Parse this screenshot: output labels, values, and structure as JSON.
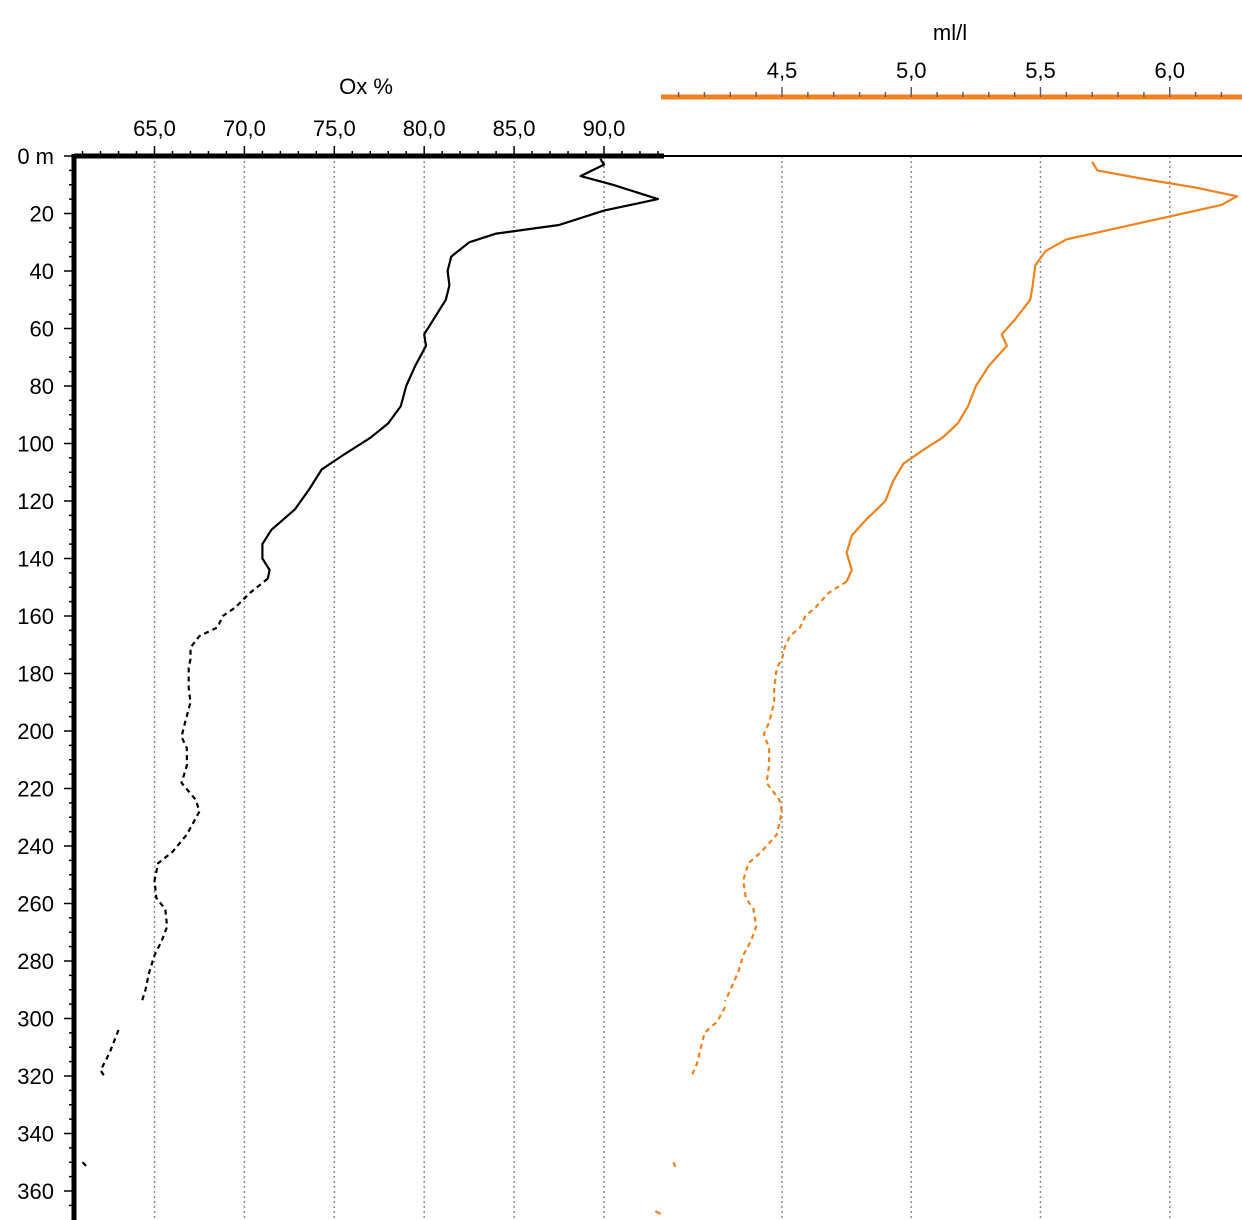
{
  "chart_data": {
    "type": "line",
    "depth_axis": {
      "ticks": [
        "0 m",
        "20",
        "40",
        "60",
        "80",
        "100",
        "120",
        "140",
        "160",
        "180",
        "200",
        "220",
        "240",
        "260",
        "280",
        "300",
        "320",
        "340",
        "360"
      ],
      "tick_values": [
        0,
        20,
        40,
        60,
        80,
        100,
        120,
        140,
        160,
        180,
        200,
        220,
        240,
        260,
        280,
        300,
        320,
        340,
        360
      ],
      "range": [
        0,
        368
      ],
      "inverted": true
    },
    "x_axes": [
      {
        "id": "ox",
        "title": "Ox %",
        "ticks": [
          "65,0",
          "70,0",
          "75,0",
          "80,0",
          "85,0",
          "90,0"
        ],
        "tick_values": [
          65,
          70,
          75,
          80,
          85,
          90
        ],
        "range": [
          60.5,
          93.4
        ],
        "color": "#000000"
      },
      {
        "id": "mll",
        "title": "ml/l",
        "ticks": [
          "4,5",
          "5,0",
          "5,5",
          "6,0"
        ],
        "tick_values": [
          4.5,
          5.0,
          5.5,
          6.0
        ],
        "range": [
          4.0,
          6.26
        ],
        "color": "#f0821e"
      }
    ],
    "grid": true,
    "series": [
      {
        "axis": "ox",
        "color": "#000000",
        "solid_until_depth": 150,
        "points": [
          [
            89.8,
            1
          ],
          [
            90.0,
            3
          ],
          [
            88.7,
            7
          ],
          [
            90.5,
            10
          ],
          [
            93.0,
            15
          ],
          [
            90.0,
            19
          ],
          [
            87.5,
            24
          ],
          [
            84.0,
            27
          ],
          [
            82.5,
            30
          ],
          [
            81.5,
            35
          ],
          [
            81.3,
            40
          ],
          [
            81.4,
            45
          ],
          [
            81.2,
            50
          ],
          [
            80.5,
            57
          ],
          [
            80.0,
            62
          ],
          [
            80.1,
            66
          ],
          [
            79.5,
            73
          ],
          [
            79.0,
            80
          ],
          [
            78.7,
            87
          ],
          [
            78.0,
            93
          ],
          [
            77.0,
            98
          ],
          [
            75.5,
            104
          ],
          [
            74.3,
            109
          ],
          [
            73.6,
            116
          ],
          [
            72.8,
            123
          ],
          [
            71.5,
            130
          ],
          [
            71.0,
            135
          ],
          [
            71.0,
            140
          ],
          [
            71.4,
            144
          ],
          [
            71.3,
            147
          ],
          [
            70.3,
            152
          ],
          [
            69.5,
            157
          ],
          [
            68.8,
            160
          ],
          [
            68.5,
            164
          ],
          [
            67.5,
            167
          ],
          [
            67.0,
            171
          ],
          [
            67.0,
            175
          ],
          [
            66.9,
            178
          ],
          [
            66.9,
            185
          ],
          [
            67.0,
            190
          ],
          [
            66.7,
            197
          ],
          [
            66.5,
            202
          ],
          [
            66.8,
            206
          ],
          [
            66.8,
            212
          ],
          [
            66.5,
            218
          ],
          [
            67.3,
            224
          ],
          [
            67.5,
            228
          ],
          [
            66.8,
            236
          ],
          [
            66.0,
            242
          ],
          [
            65.2,
            246
          ],
          [
            65.0,
            252
          ],
          [
            65.1,
            258
          ],
          [
            65.6,
            262
          ],
          [
            65.7,
            268
          ],
          [
            65.4,
            273
          ],
          [
            65.0,
            278
          ],
          [
            64.7,
            284
          ],
          [
            64.5,
            290
          ],
          [
            64.3,
            294
          ]
        ]
      },
      {
        "axis": "ox",
        "color": "#000000",
        "dashed": true,
        "points": [
          [
            63.0,
            304
          ],
          [
            62.5,
            312
          ],
          [
            62.0,
            318
          ],
          [
            62.2,
            320
          ]
        ]
      },
      {
        "axis": "ox",
        "color": "#000000",
        "dashed": true,
        "points": [
          [
            61.0,
            350
          ],
          [
            61.3,
            352
          ]
        ]
      },
      {
        "axis": "mll",
        "color": "#f0821e",
        "solid_until_depth": 150,
        "points": [
          [
            5.7,
            2
          ],
          [
            5.72,
            5
          ],
          [
            5.9,
            8
          ],
          [
            6.1,
            11
          ],
          [
            6.26,
            14
          ],
          [
            6.2,
            17
          ],
          [
            6.0,
            21
          ],
          [
            5.8,
            25
          ],
          [
            5.6,
            29
          ],
          [
            5.52,
            33
          ],
          [
            5.48,
            38
          ],
          [
            5.47,
            45
          ],
          [
            5.46,
            50
          ],
          [
            5.4,
            57
          ],
          [
            5.35,
            62
          ],
          [
            5.37,
            66
          ],
          [
            5.3,
            73
          ],
          [
            5.25,
            80
          ],
          [
            5.22,
            87
          ],
          [
            5.18,
            93
          ],
          [
            5.12,
            98
          ],
          [
            5.05,
            102
          ],
          [
            4.97,
            107
          ],
          [
            4.93,
            113
          ],
          [
            4.9,
            120
          ],
          [
            4.82,
            127
          ],
          [
            4.77,
            132
          ],
          [
            4.75,
            138
          ],
          [
            4.77,
            144
          ],
          [
            4.75,
            148
          ],
          [
            4.68,
            152
          ],
          [
            4.63,
            157
          ],
          [
            4.59,
            160
          ],
          [
            4.57,
            164
          ],
          [
            4.53,
            167
          ],
          [
            4.51,
            171
          ],
          [
            4.5,
            175
          ],
          [
            4.48,
            178
          ],
          [
            4.47,
            185
          ],
          [
            4.47,
            190
          ],
          [
            4.45,
            197
          ],
          [
            4.43,
            201
          ],
          [
            4.45,
            206
          ],
          [
            4.45,
            212
          ],
          [
            4.44,
            218
          ],
          [
            4.49,
            224
          ],
          [
            4.5,
            228
          ],
          [
            4.48,
            236
          ],
          [
            4.42,
            242
          ],
          [
            4.37,
            246
          ],
          [
            4.35,
            252
          ],
          [
            4.36,
            258
          ],
          [
            4.39,
            262
          ],
          [
            4.4,
            268
          ],
          [
            4.38,
            273
          ],
          [
            4.35,
            278
          ],
          [
            4.33,
            284
          ],
          [
            4.3,
            290
          ],
          [
            4.28,
            294
          ]
        ]
      },
      {
        "axis": "mll",
        "color": "#f0821e",
        "dashed": true,
        "points": [
          [
            4.28,
            296
          ],
          [
            4.25,
            301
          ],
          [
            4.2,
            305
          ],
          [
            4.17,
            316
          ],
          [
            4.15,
            320
          ]
        ]
      },
      {
        "axis": "mll",
        "color": "#f0821e",
        "dashed": true,
        "points": [
          [
            4.08,
            350
          ],
          [
            4.09,
            352
          ]
        ]
      },
      {
        "axis": "mll",
        "color": "#f0821e",
        "dashed": false,
        "points": [
          [
            4.01,
            367
          ],
          [
            4.03,
            368
          ]
        ]
      }
    ]
  }
}
